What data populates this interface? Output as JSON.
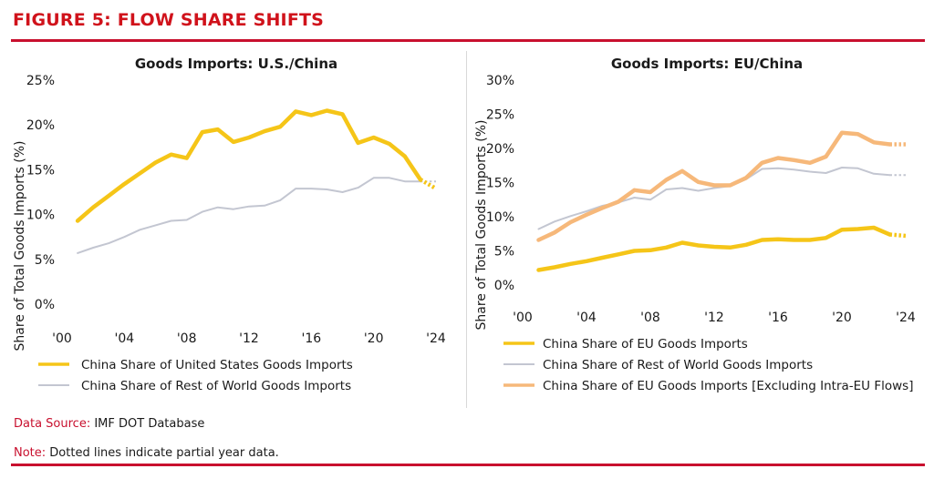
{
  "figure_title": "FIGURE 5: FLOW SHARE SHIFTS",
  "footer": {
    "source_label": "Data Source:",
    "source_text": "IMF DOT Database",
    "note_label": "Note:",
    "note_text": "Dotted lines indicate partial year data."
  },
  "colors": {
    "brand_red": "#c8102e",
    "china_yellow": "#f5c518",
    "rest_gray": "#c3c6d1",
    "excl_orange": "#f6b87a"
  },
  "chart_data": [
    {
      "type": "line",
      "title": "Goods Imports: U.S./China",
      "ylabel": "Share of Total Goods Imports (%)",
      "xlabel": "",
      "xlim": [
        2000,
        2024
      ],
      "ylim": [
        0,
        25
      ],
      "xticks": [
        2000,
        2004,
        2008,
        2012,
        2016,
        2020,
        2024
      ],
      "xtick_labels": [
        "'00",
        "'04",
        "'08",
        "'12",
        "'16",
        "'20",
        "'24"
      ],
      "yticks": [
        0,
        5,
        10,
        15,
        20,
        25
      ],
      "ytick_labels": [
        "0%",
        "5%",
        "10%",
        "15%",
        "20%",
        "25%"
      ],
      "series": [
        {
          "name": "China Share of United States Goods Imports",
          "color_key": "china_yellow",
          "x": [
            2001,
            2002,
            2003,
            2004,
            2005,
            2006,
            2007,
            2008,
            2009,
            2010,
            2011,
            2012,
            2013,
            2014,
            2015,
            2016,
            2017,
            2018,
            2019,
            2020,
            2021,
            2022,
            2023
          ],
          "values": [
            9.3,
            10.8,
            12.1,
            13.4,
            14.6,
            15.8,
            16.7,
            16.3,
            19.2,
            19.5,
            18.1,
            18.6,
            19.3,
            19.8,
            21.5,
            21.1,
            21.6,
            21.2,
            18.0,
            18.6,
            17.9,
            16.5,
            13.9
          ],
          "dotted_x": [
            2023,
            2024
          ],
          "dotted_values": [
            13.9,
            12.9
          ]
        },
        {
          "name": "China Share of Rest of World Goods Imports",
          "color_key": "rest_gray",
          "x": [
            2001,
            2002,
            2003,
            2004,
            2005,
            2006,
            2007,
            2008,
            2009,
            2010,
            2011,
            2012,
            2013,
            2014,
            2015,
            2016,
            2017,
            2018,
            2019,
            2020,
            2021,
            2022,
            2023
          ],
          "values": [
            5.7,
            6.3,
            6.8,
            7.5,
            8.3,
            8.8,
            9.3,
            9.4,
            10.3,
            10.8,
            10.6,
            10.9,
            11.0,
            11.6,
            12.9,
            12.9,
            12.8,
            12.5,
            13.0,
            14.1,
            14.1,
            13.7,
            13.7
          ],
          "dotted_x": [
            2023,
            2024
          ],
          "dotted_values": [
            13.7,
            13.7
          ]
        }
      ]
    },
    {
      "type": "line",
      "title": "Goods Imports: EU/China",
      "ylabel": "Share of Total Goods Imports (%)",
      "xlabel": "",
      "xlim": [
        2000,
        2024
      ],
      "ylim": [
        0,
        30
      ],
      "xticks": [
        2000,
        2004,
        2008,
        2012,
        2016,
        2020,
        2024
      ],
      "xtick_labels": [
        "'00",
        "'04",
        "'08",
        "'12",
        "'16",
        "'20",
        "'24"
      ],
      "yticks": [
        0,
        5,
        10,
        15,
        20,
        25,
        30
      ],
      "ytick_labels": [
        "0%",
        "5%",
        "10%",
        "15%",
        "20%",
        "25%",
        "30%"
      ],
      "series": [
        {
          "name": "China Share of EU Goods Imports",
          "color_key": "china_yellow",
          "x": [
            2001,
            2002,
            2003,
            2004,
            2005,
            2006,
            2007,
            2008,
            2009,
            2010,
            2011,
            2012,
            2013,
            2014,
            2015,
            2016,
            2017,
            2018,
            2019,
            2020,
            2021,
            2022,
            2023
          ],
          "values": [
            2.2,
            2.6,
            3.1,
            3.5,
            4.0,
            4.5,
            5.0,
            5.1,
            5.5,
            6.2,
            5.8,
            5.6,
            5.5,
            5.9,
            6.6,
            6.7,
            6.6,
            6.6,
            6.9,
            8.1,
            8.2,
            8.4,
            7.4
          ],
          "dotted_x": [
            2023,
            2024
          ],
          "dotted_values": [
            7.4,
            7.2
          ]
        },
        {
          "name": "China Share of Rest of World Goods Imports",
          "color_key": "rest_gray",
          "x": [
            2001,
            2002,
            2003,
            2004,
            2005,
            2006,
            2007,
            2008,
            2009,
            2010,
            2011,
            2012,
            2013,
            2014,
            2015,
            2016,
            2017,
            2018,
            2019,
            2020,
            2021,
            2022,
            2023
          ],
          "values": [
            8.2,
            9.3,
            10.1,
            10.8,
            11.6,
            12.1,
            12.8,
            12.5,
            14.0,
            14.2,
            13.8,
            14.2,
            14.5,
            15.5,
            17.0,
            17.1,
            16.9,
            16.6,
            16.4,
            17.2,
            17.1,
            16.3,
            16.1
          ],
          "dotted_x": [
            2023,
            2024
          ],
          "dotted_values": [
            16.1,
            16.1
          ]
        },
        {
          "name": "China Share of EU Goods Imports [Excluding Intra-EU Flows]",
          "color_key": "excl_orange",
          "x": [
            2001,
            2002,
            2003,
            2004,
            2005,
            2006,
            2007,
            2008,
            2009,
            2010,
            2011,
            2012,
            2013,
            2014,
            2015,
            2016,
            2017,
            2018,
            2019,
            2020,
            2021,
            2022,
            2023
          ],
          "values": [
            6.6,
            7.7,
            9.2,
            10.3,
            11.3,
            12.2,
            13.9,
            13.6,
            15.4,
            16.7,
            15.1,
            14.6,
            14.6,
            15.7,
            17.9,
            18.6,
            18.3,
            17.9,
            18.8,
            22.3,
            22.1,
            20.9,
            20.6
          ],
          "dotted_x": [
            2023,
            2024
          ],
          "dotted_values": [
            20.6,
            20.6
          ]
        }
      ]
    }
  ]
}
